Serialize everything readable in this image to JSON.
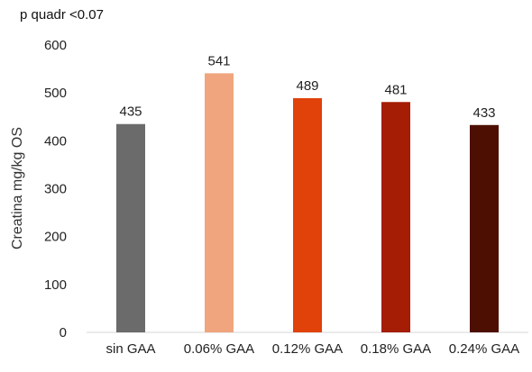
{
  "chart_data": {
    "type": "bar",
    "annotation": "p quadr <0.07",
    "ylabel": "Creatina mg/kg OS",
    "xlabel": "",
    "categories": [
      "sin GAA",
      "0.06% GAA",
      "0.12% GAA",
      "0.18% GAA",
      "0.24% GAA"
    ],
    "values": [
      435,
      541,
      489,
      481,
      433
    ],
    "data_labels": [
      "435",
      "541",
      "489",
      "481",
      "433"
    ],
    "colors": [
      "#6b6b6b",
      "#f0a57e",
      "#e0420a",
      "#a41d04",
      "#4d0f02"
    ],
    "ylim": [
      0,
      600
    ],
    "yticks": [
      0,
      100,
      200,
      300,
      400,
      500,
      600
    ],
    "grid": false,
    "legend": "none"
  }
}
